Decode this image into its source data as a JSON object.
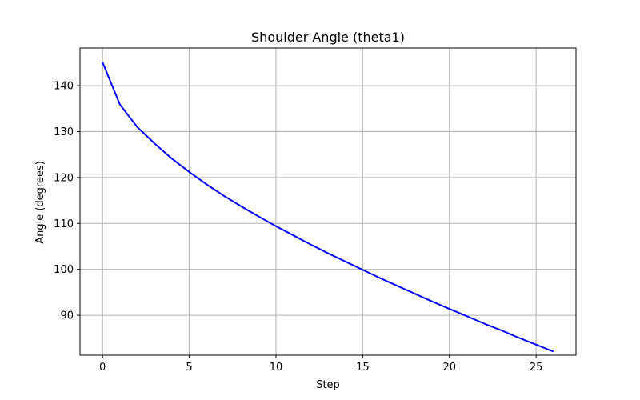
{
  "chart_data": {
    "type": "line",
    "title": "Shoulder Angle (theta1)",
    "xlabel": "Step",
    "ylabel": "Angle (degrees)",
    "xlim": [
      -1.3,
      27.3
    ],
    "ylim": [
      81.3,
      148.2
    ],
    "xticks": [
      0,
      5,
      10,
      15,
      20,
      25
    ],
    "yticks": [
      90,
      100,
      110,
      120,
      130,
      140
    ],
    "grid": true,
    "legend": "none",
    "series": [
      {
        "color": "#0000ff",
        "x": [
          0,
          1,
          2,
          3,
          4,
          5,
          6,
          7,
          8,
          9,
          10,
          11,
          12,
          13,
          14,
          15,
          16,
          17,
          18,
          19,
          20,
          21,
          22,
          23,
          24,
          25,
          26
        ],
        "y": [
          145.1,
          135.9,
          131.0,
          127.4,
          124.1,
          121.2,
          118.5,
          116.0,
          113.7,
          111.5,
          109.4,
          107.4,
          105.4,
          103.5,
          101.7,
          99.9,
          98.1,
          96.4,
          94.7,
          93.0,
          91.4,
          89.8,
          88.2,
          86.7,
          85.1,
          83.6,
          82.1
        ]
      }
    ]
  },
  "colors": {
    "line": "#0000ff",
    "grid": "#b0b0b0",
    "axes": "#000000"
  }
}
